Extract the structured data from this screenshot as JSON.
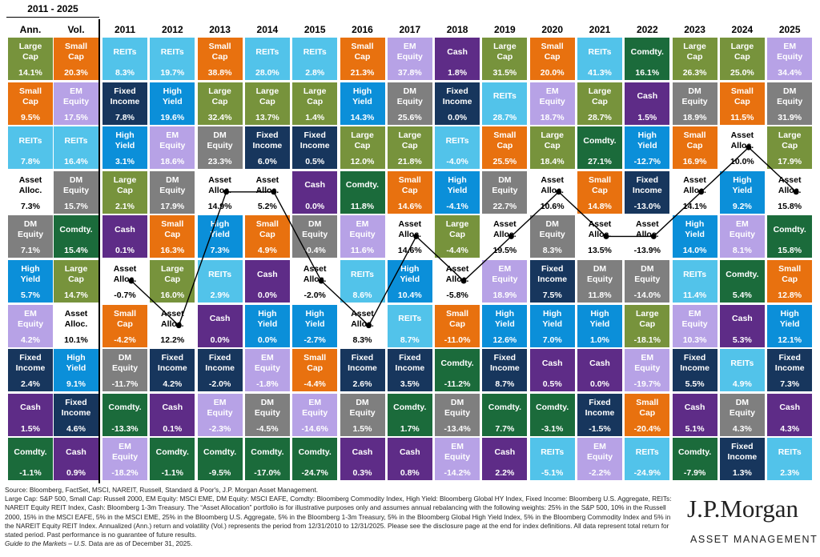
{
  "asset_classes": [
    {
      "label": "Large Cap",
      "color": "#77933c",
      "text_color": "#ffffff"
    },
    {
      "label": "Small Cap",
      "color": "#e8710f",
      "text_color": "#ffffff"
    },
    {
      "label": "EM Equity",
      "color": "#b7a2e6",
      "text_color": "#ffffff"
    },
    {
      "label": "DM Equity",
      "color": "#7f7f7f",
      "text_color": "#ffffff"
    },
    {
      "label": "REITs",
      "color": "#52c3ea",
      "text_color": "#ffffff"
    },
    {
      "label": "High Yield",
      "color": "#0b8fd9",
      "text_color": "#ffffff"
    },
    {
      "label": "Fixed Income",
      "color": "#17365d",
      "text_color": "#ffffff"
    },
    {
      "label": "Cash",
      "color": "#5e2c87",
      "text_color": "#ffffff"
    },
    {
      "label": "Comdty.",
      "color": "#1b6b3b",
      "text_color": "#ffffff"
    },
    {
      "label": "Asset Alloc.",
      "color": "#ffffff",
      "text_color": "#000000",
      "connected": true
    }
  ],
  "summary": {
    "heading": "2011 - 2025",
    "columns": [
      {
        "heading": "Ann.",
        "cells": [
          {
            "class": 0,
            "value": "14.1%"
          },
          {
            "class": 1,
            "value": "9.5%"
          },
          {
            "class": 4,
            "value": "7.8%"
          },
          {
            "class": 9,
            "value": "7.3%"
          },
          {
            "class": 3,
            "value": "7.1%"
          },
          {
            "class": 5,
            "value": "5.7%"
          },
          {
            "class": 2,
            "value": "4.2%"
          },
          {
            "class": 6,
            "value": "2.4%"
          },
          {
            "class": 7,
            "value": "1.5%"
          },
          {
            "class": 8,
            "value": "-1.1%"
          }
        ]
      },
      {
        "heading": "Vol.",
        "cells": [
          {
            "class": 1,
            "value": "20.3%"
          },
          {
            "class": 2,
            "value": "17.5%"
          },
          {
            "class": 4,
            "value": "16.4%"
          },
          {
            "class": 3,
            "value": "15.7%"
          },
          {
            "class": 8,
            "value": "15.4%"
          },
          {
            "class": 0,
            "value": "14.7%"
          },
          {
            "class": 9,
            "value": "10.1%"
          },
          {
            "class": 5,
            "value": "9.1%"
          },
          {
            "class": 6,
            "value": "4.6%"
          },
          {
            "class": 7,
            "value": "0.9%"
          }
        ]
      }
    ]
  },
  "years": [
    {
      "heading": "2011",
      "cells": [
        {
          "class": 4,
          "value": "8.3%"
        },
        {
          "class": 6,
          "value": "7.8%"
        },
        {
          "class": 5,
          "value": "3.1%"
        },
        {
          "class": 0,
          "value": "2.1%"
        },
        {
          "class": 7,
          "value": "0.1%"
        },
        {
          "class": 9,
          "value": "-0.7%"
        },
        {
          "class": 1,
          "value": "-4.2%"
        },
        {
          "class": 3,
          "value": "-11.7%"
        },
        {
          "class": 8,
          "value": "-13.3%"
        },
        {
          "class": 2,
          "value": "-18.2%"
        }
      ]
    },
    {
      "heading": "2012",
      "cells": [
        {
          "class": 4,
          "value": "19.7%"
        },
        {
          "class": 5,
          "value": "19.6%"
        },
        {
          "class": 2,
          "value": "18.6%"
        },
        {
          "class": 3,
          "value": "17.9%"
        },
        {
          "class": 1,
          "value": "16.3%"
        },
        {
          "class": 0,
          "value": "16.0%"
        },
        {
          "class": 9,
          "value": "12.2%"
        },
        {
          "class": 6,
          "value": "4.2%"
        },
        {
          "class": 7,
          "value": "0.1%"
        },
        {
          "class": 8,
          "value": "-1.1%"
        }
      ]
    },
    {
      "heading": "2013",
      "cells": [
        {
          "class": 1,
          "value": "38.8%"
        },
        {
          "class": 0,
          "value": "32.4%"
        },
        {
          "class": 3,
          "value": "23.3%"
        },
        {
          "class": 9,
          "value": "14.9%"
        },
        {
          "class": 5,
          "value": "7.3%"
        },
        {
          "class": 4,
          "value": "2.9%"
        },
        {
          "class": 7,
          "value": "0.0%"
        },
        {
          "class": 6,
          "value": "-2.0%"
        },
        {
          "class": 2,
          "value": "-2.3%"
        },
        {
          "class": 8,
          "value": "-9.5%"
        }
      ]
    },
    {
      "heading": "2014",
      "cells": [
        {
          "class": 4,
          "value": "28.0%"
        },
        {
          "class": 0,
          "value": "13.7%"
        },
        {
          "class": 6,
          "value": "6.0%"
        },
        {
          "class": 9,
          "value": "5.2%"
        },
        {
          "class": 1,
          "value": "4.9%"
        },
        {
          "class": 7,
          "value": "0.0%"
        },
        {
          "class": 5,
          "value": "0.0%"
        },
        {
          "class": 2,
          "value": "-1.8%"
        },
        {
          "class": 3,
          "value": "-4.5%"
        },
        {
          "class": 8,
          "value": "-17.0%"
        }
      ]
    },
    {
      "heading": "2015",
      "cells": [
        {
          "class": 4,
          "value": "2.8%"
        },
        {
          "class": 0,
          "value": "1.4%"
        },
        {
          "class": 6,
          "value": "0.5%"
        },
        {
          "class": 7,
          "value": "0.0%"
        },
        {
          "class": 3,
          "value": "-0.4%"
        },
        {
          "class": 9,
          "value": "-2.0%"
        },
        {
          "class": 5,
          "value": "-2.7%"
        },
        {
          "class": 1,
          "value": "-4.4%"
        },
        {
          "class": 2,
          "value": "-14.6%"
        },
        {
          "class": 8,
          "value": "-24.7%"
        }
      ]
    },
    {
      "heading": "2016",
      "cells": [
        {
          "class": 1,
          "value": "21.3%"
        },
        {
          "class": 5,
          "value": "14.3%"
        },
        {
          "class": 0,
          "value": "12.0%"
        },
        {
          "class": 8,
          "value": "11.8%"
        },
        {
          "class": 2,
          "value": "11.6%"
        },
        {
          "class": 4,
          "value": "8.6%"
        },
        {
          "class": 9,
          "value": "8.3%"
        },
        {
          "class": 6,
          "value": "2.6%"
        },
        {
          "class": 3,
          "value": "1.5%"
        },
        {
          "class": 7,
          "value": "0.3%"
        }
      ]
    },
    {
      "heading": "2017",
      "cells": [
        {
          "class": 2,
          "value": "37.8%"
        },
        {
          "class": 3,
          "value": "25.6%"
        },
        {
          "class": 0,
          "value": "21.8%"
        },
        {
          "class": 1,
          "value": "14.6%"
        },
        {
          "class": 9,
          "value": "14.6%"
        },
        {
          "class": 5,
          "value": "10.4%"
        },
        {
          "class": 4,
          "value": "8.7%"
        },
        {
          "class": 6,
          "value": "3.5%"
        },
        {
          "class": 8,
          "value": "1.7%"
        },
        {
          "class": 7,
          "value": "0.8%"
        }
      ]
    },
    {
      "heading": "2018",
      "cells": [
        {
          "class": 7,
          "value": "1.8%"
        },
        {
          "class": 6,
          "value": "0.0%"
        },
        {
          "class": 4,
          "value": "-4.0%"
        },
        {
          "class": 5,
          "value": "-4.1%"
        },
        {
          "class": 0,
          "value": "-4.4%"
        },
        {
          "class": 9,
          "value": "-5.8%"
        },
        {
          "class": 1,
          "value": "-11.0%"
        },
        {
          "class": 8,
          "value": "-11.2%"
        },
        {
          "class": 3,
          "value": "-13.4%"
        },
        {
          "class": 2,
          "value": "-14.2%"
        }
      ]
    },
    {
      "heading": "2019",
      "cells": [
        {
          "class": 0,
          "value": "31.5%"
        },
        {
          "class": 4,
          "value": "28.7%"
        },
        {
          "class": 1,
          "value": "25.5%"
        },
        {
          "class": 3,
          "value": "22.7%"
        },
        {
          "class": 9,
          "value": "19.5%"
        },
        {
          "class": 2,
          "value": "18.9%"
        },
        {
          "class": 5,
          "value": "12.6%"
        },
        {
          "class": 6,
          "value": "8.7%"
        },
        {
          "class": 8,
          "value": "7.7%"
        },
        {
          "class": 7,
          "value": "2.2%"
        }
      ]
    },
    {
      "heading": "2020",
      "cells": [
        {
          "class": 1,
          "value": "20.0%"
        },
        {
          "class": 2,
          "value": "18.7%"
        },
        {
          "class": 0,
          "value": "18.4%"
        },
        {
          "class": 9,
          "value": "10.6%"
        },
        {
          "class": 3,
          "value": "8.3%"
        },
        {
          "class": 6,
          "value": "7.5%"
        },
        {
          "class": 5,
          "value": "7.0%"
        },
        {
          "class": 7,
          "value": "0.5%"
        },
        {
          "class": 8,
          "value": "-3.1%"
        },
        {
          "class": 4,
          "value": "-5.1%"
        }
      ]
    },
    {
      "heading": "2021",
      "cells": [
        {
          "class": 4,
          "value": "41.3%"
        },
        {
          "class": 0,
          "value": "28.7%"
        },
        {
          "class": 8,
          "value": "27.1%"
        },
        {
          "class": 1,
          "value": "14.8%"
        },
        {
          "class": 9,
          "value": "13.5%"
        },
        {
          "class": 3,
          "value": "11.8%"
        },
        {
          "class": 5,
          "value": "1.0%"
        },
        {
          "class": 7,
          "value": "0.0%"
        },
        {
          "class": 6,
          "value": "-1.5%"
        },
        {
          "class": 2,
          "value": "-2.2%"
        }
      ]
    },
    {
      "heading": "2022",
      "cells": [
        {
          "class": 8,
          "value": "16.1%"
        },
        {
          "class": 7,
          "value": "1.5%"
        },
        {
          "class": 5,
          "value": "-12.7%"
        },
        {
          "class": 6,
          "value": "-13.0%"
        },
        {
          "class": 9,
          "value": "-13.9%"
        },
        {
          "class": 3,
          "value": "-14.0%"
        },
        {
          "class": 0,
          "value": "-18.1%"
        },
        {
          "class": 2,
          "value": "-19.7%"
        },
        {
          "class": 1,
          "value": "-20.4%"
        },
        {
          "class": 4,
          "value": "-24.9%"
        }
      ]
    },
    {
      "heading": "2023",
      "cells": [
        {
          "class": 0,
          "value": "26.3%"
        },
        {
          "class": 3,
          "value": "18.9%"
        },
        {
          "class": 1,
          "value": "16.9%"
        },
        {
          "class": 9,
          "value": "14.1%"
        },
        {
          "class": 5,
          "value": "14.0%"
        },
        {
          "class": 4,
          "value": "11.4%"
        },
        {
          "class": 2,
          "value": "10.3%"
        },
        {
          "class": 6,
          "value": "5.5%"
        },
        {
          "class": 7,
          "value": "5.1%"
        },
        {
          "class": 8,
          "value": "-7.9%"
        }
      ]
    },
    {
      "heading": "2024",
      "cells": [
        {
          "class": 0,
          "value": "25.0%"
        },
        {
          "class": 1,
          "value": "11.5%"
        },
        {
          "class": 9,
          "value": "10.0%"
        },
        {
          "class": 5,
          "value": "9.2%"
        },
        {
          "class": 2,
          "value": "8.1%"
        },
        {
          "class": 8,
          "value": "5.4%"
        },
        {
          "class": 7,
          "value": "5.3%"
        },
        {
          "class": 4,
          "value": "4.9%"
        },
        {
          "class": 3,
          "value": "4.3%"
        },
        {
          "class": 6,
          "value": "1.3%"
        }
      ]
    },
    {
      "heading": "2025",
      "cells": [
        {
          "class": 2,
          "value": "34.4%"
        },
        {
          "class": 3,
          "value": "31.9%"
        },
        {
          "class": 0,
          "value": "17.9%"
        },
        {
          "class": 9,
          "value": "15.8%"
        },
        {
          "class": 8,
          "value": "15.8%"
        },
        {
          "class": 1,
          "value": "12.8%"
        },
        {
          "class": 5,
          "value": "12.1%"
        },
        {
          "class": 6,
          "value": "7.3%"
        },
        {
          "class": 7,
          "value": "4.3%"
        },
        {
          "class": 4,
          "value": "2.3%"
        }
      ]
    }
  ],
  "footer": {
    "source": "Source: Bloomberg, FactSet, MSCI, NAREIT, Russell, Standard & Poor's, J.P. Morgan Asset Management.",
    "notes": "Large Cap: S&P 500, Small Cap: Russell 2000, EM Equity: MSCI EME, DM Equity: MSCI EAFE, Comdty: Bloomberg Commodity Index, High Yield: Bloomberg Global HY Index, Fixed Income: Bloomberg U.S. Aggregate, REITs: NAREIT Equity REIT Index, Cash: Bloomberg 1-3m Treasury. The “Asset Allocation” portfolio is for illustrative purposes only and assumes annual rebalancing with the following weights: 25% in the S&P 500, 10% in the Russell 2000, 15% in the MSCI EAFE, 5% in the MSCI EME, 25% in the Bloomberg U.S. Aggregate, 5% in the Bloomberg 1-3m Treasury, 5% in the Bloomberg Global High Yield Index, 5% in the Bloomberg Commodity Index and 5% in the NAREIT Equity REIT Index. Annualized (Ann.) return and volatility (Vol.) represents the period from 12/31/2010 to 12/31/2025. Please see the disclosure page at the end for index definitions. All data represent total return for stated period. Past performance is no guarantee of future results.",
    "guide": "Guide to the Markets – U.S.",
    "as_of": "Data are as of December 31, 2025."
  },
  "logo": {
    "name": "J.P.Morgan",
    "tagline": "ASSET MANAGEMENT"
  }
}
